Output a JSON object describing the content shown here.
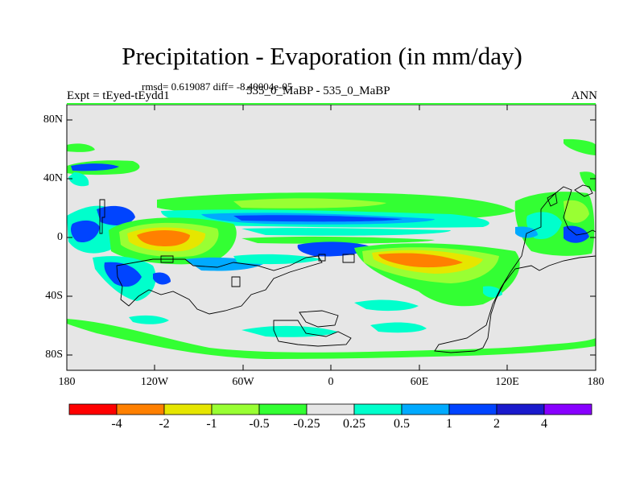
{
  "title": "Precipitation - Evaporation (in mm/day)",
  "stats": "rmsd= 0.619087 diff= -8.40004e-05",
  "expt": "Expt = tEyed-tEydd1",
  "runs": "535_0_MaBP - 535_0_MaBP",
  "season": "ANN",
  "lat_labels": [
    "80N",
    "40N",
    "0",
    "40S",
    "80S"
  ],
  "lon_labels": [
    "180",
    "120W",
    "60W",
    "0",
    "60E",
    "120E",
    "180"
  ],
  "colorbar": {
    "colors": [
      "#ff0000",
      "#ff8000",
      "#e6e600",
      "#99ff33",
      "#33ff33",
      "#e6e6e6",
      "#00ffcc",
      "#00aaff",
      "#0044ff",
      "#1a1acc",
      "#8800ff"
    ],
    "labels": [
      "-4",
      "-2",
      "-1",
      "-0.5",
      "-0.25",
      "0.25",
      "0.5",
      "1",
      "2",
      "4"
    ]
  },
  "colors": {
    "background": "#e6e6e6",
    "coastline": "#000000"
  }
}
